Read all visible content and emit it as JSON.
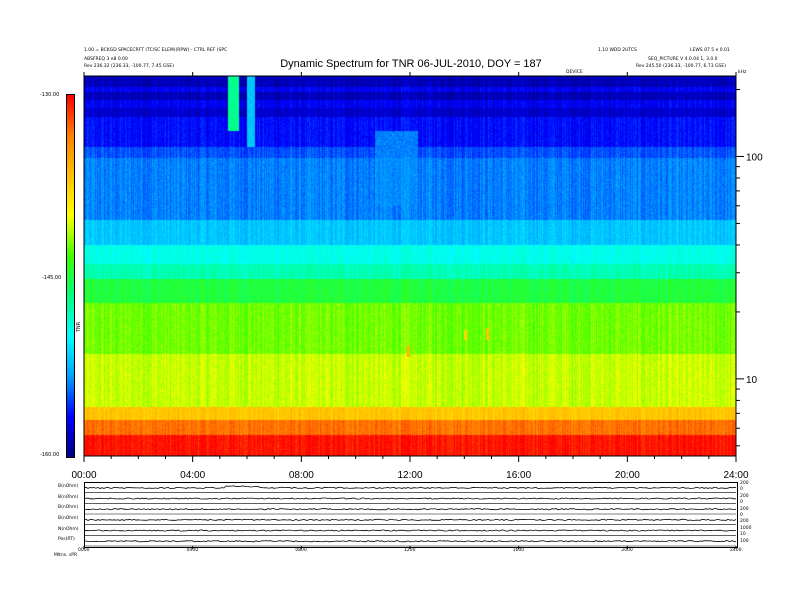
{
  "header": {
    "top_left_1": "1.00 = BCKGD SPACECRFT (TC/SC ELEM)(RPW) - CTRL REF (SPC",
    "top_left_2": "ABSFREQ 3 e8 0.00",
    "top_left_3": "Rev 236.32 (236.33, -100.77, 7.45 GSE)",
    "top_right_1": "1.10 WDD 2UTCS",
    "top_right_2": "LEWS 07 5 e 0.01",
    "top_right_3": "SEQ_PICTURE V 4.0.04 1, 3.0.0",
    "top_right_4": "Rev 245.50 (236.33, -100.77, 6.73 GSE)",
    "device_label": "DEVICE"
  },
  "chart_data": {
    "type": "heatmap",
    "title": "Dynamic Spectrum for TNR 06-JUL-2010, DOY = 187",
    "x_ticks": [
      "00:00",
      "04:00",
      "08:00",
      "12:00",
      "16:00",
      "20:00",
      "24:00"
    ],
    "x_range": [
      0,
      24
    ],
    "y_scale": "log",
    "y_range": [
      4.5,
      230
    ],
    "y_ticks": [
      10,
      100
    ],
    "y_tick_labels": [
      "10",
      "100"
    ],
    "y_unit_label": "kHz",
    "colorbar": {
      "min": -160.0,
      "max": -130.0,
      "labels": [
        "-130.00",
        "-145.00",
        "-160.00"
      ],
      "label": "TNR",
      "colors": [
        "#000080",
        "#0000ff",
        "#00a0ff",
        "#00ffff",
        "#00ff80",
        "#40ff00",
        "#ffff00",
        "#ffc000",
        "#ff8000",
        "#ff0000"
      ]
    },
    "frequency_bands": [
      {
        "fmin": 4.5,
        "fmax": 5.6,
        "level": -130.5
      },
      {
        "fmin": 5.6,
        "fmax": 6.5,
        "level": -133
      },
      {
        "fmin": 6.5,
        "fmax": 7.5,
        "level": -137
      },
      {
        "fmin": 7.5,
        "fmax": 13,
        "level": -141
      },
      {
        "fmin": 13,
        "fmax": 22,
        "level": -142.5
      },
      {
        "fmin": 22,
        "fmax": 28,
        "level": -145
      },
      {
        "fmin": 28,
        "fmax": 33,
        "level": -148
      },
      {
        "fmin": 33,
        "fmax": 40,
        "level": -149.5
      },
      {
        "fmin": 40,
        "fmax": 52,
        "level": -152
      },
      {
        "fmin": 52,
        "fmax": 98,
        "level": -154
      },
      {
        "fmin": 98,
        "fmax": 110,
        "level": -155
      },
      {
        "fmin": 110,
        "fmax": 150,
        "level": -156.5
      },
      {
        "fmin": 150,
        "fmax": 165,
        "level": -158
      },
      {
        "fmin": 165,
        "fmax": 180,
        "level": -157
      },
      {
        "fmin": 180,
        "fmax": 195,
        "level": -158.5
      },
      {
        "fmin": 195,
        "fmax": 205,
        "level": -157
      },
      {
        "fmin": 205,
        "fmax": 230,
        "level": -158.5
      }
    ],
    "events": [
      {
        "t0": 5.3,
        "t1": 5.7,
        "fmin": 130,
        "fmax": 230,
        "level": -147
      },
      {
        "t0": 6.0,
        "t1": 6.3,
        "fmin": 110,
        "fmax": 230,
        "level": -152
      },
      {
        "t0": 10.7,
        "t1": 12.3,
        "fmin": 60,
        "fmax": 130,
        "level": -154
      },
      {
        "t0": 11.9,
        "t1": 12.0,
        "fmin": 12.5,
        "fmax": 14,
        "level": -136
      },
      {
        "t0": 14.8,
        "t1": 14.9,
        "fmin": 15,
        "fmax": 17,
        "level": -137
      },
      {
        "t0": 14.0,
        "t1": 14.1,
        "fmin": 15,
        "fmax": 16.5,
        "level": -138
      }
    ]
  },
  "lower_panel": {
    "row_labels": [
      "B(nOhm)",
      "B(nOhm)",
      "B(nOhm)",
      "B(nOhm)",
      "N(nOhm)",
      "Pos(RT)"
    ],
    "right_labels": [
      "200",
      "0",
      "200",
      "0",
      "200",
      "0",
      "200",
      "1000",
      "10",
      "100"
    ],
    "x_ticks": [
      "0000",
      "0400",
      "0800",
      "1200",
      "1600",
      "2000",
      "2400"
    ],
    "footer_label": "Mltns. sPR"
  }
}
